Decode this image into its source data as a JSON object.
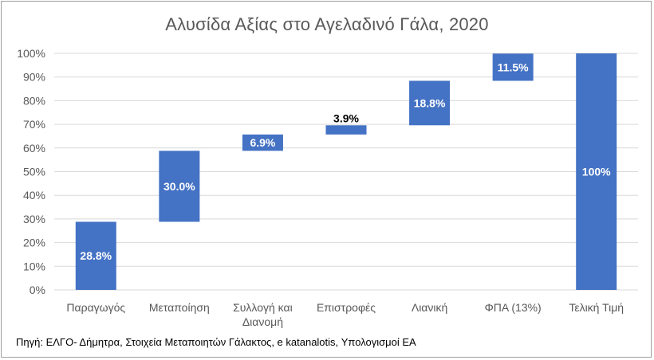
{
  "chart_data": {
    "type": "bar",
    "subtype": "waterfall",
    "title": "Αλυσίδα Αξίας στο Αγελαδινό Γάλα, 2020",
    "categories": [
      "Παραγωγός",
      "Μεταποίηση",
      "Συλλογή και Διανομή",
      "Επιστροφές",
      "Λιανική",
      "ΦΠΑ (13%)",
      "Τελική Τιμή"
    ],
    "category_lines": [
      [
        "Παραγωγός"
      ],
      [
        "Μεταποίηση"
      ],
      [
        "Συλλογή και",
        "Διανομή"
      ],
      [
        "Επιστροφές"
      ],
      [
        "Λιανική"
      ],
      [
        "ΦΠΑ (13%)"
      ],
      [
        "Τελική Τιμή"
      ]
    ],
    "base": [
      0,
      28.8,
      58.8,
      65.7,
      69.6,
      88.4,
      0
    ],
    "values": [
      28.8,
      30.0,
      6.9,
      3.9,
      18.8,
      11.5,
      100
    ],
    "data_labels": [
      "28.8%",
      "30.0%",
      "6.9%",
      "3.9%",
      "18.8%",
      "11.5%",
      "100%"
    ],
    "label_colors": [
      "#ffffff",
      "#ffffff",
      "#ffffff",
      "#000000",
      "#ffffff",
      "#ffffff",
      "#ffffff"
    ],
    "ylim": [
      0,
      100
    ],
    "yticks": [
      "0%",
      "10%",
      "20%",
      "30%",
      "40%",
      "50%",
      "60%",
      "70%",
      "80%",
      "90%",
      "100%"
    ],
    "grid": true,
    "bar_color": "#4472c4",
    "grid_color": "#d9d9d9"
  },
  "source_text": "Πηγή: ΕΛΓΟ- Δήμητρα, Στοιχεία Μεταποιητών Γάλακτος, e katanalotis, Υπολογισμοί ΕΑ"
}
